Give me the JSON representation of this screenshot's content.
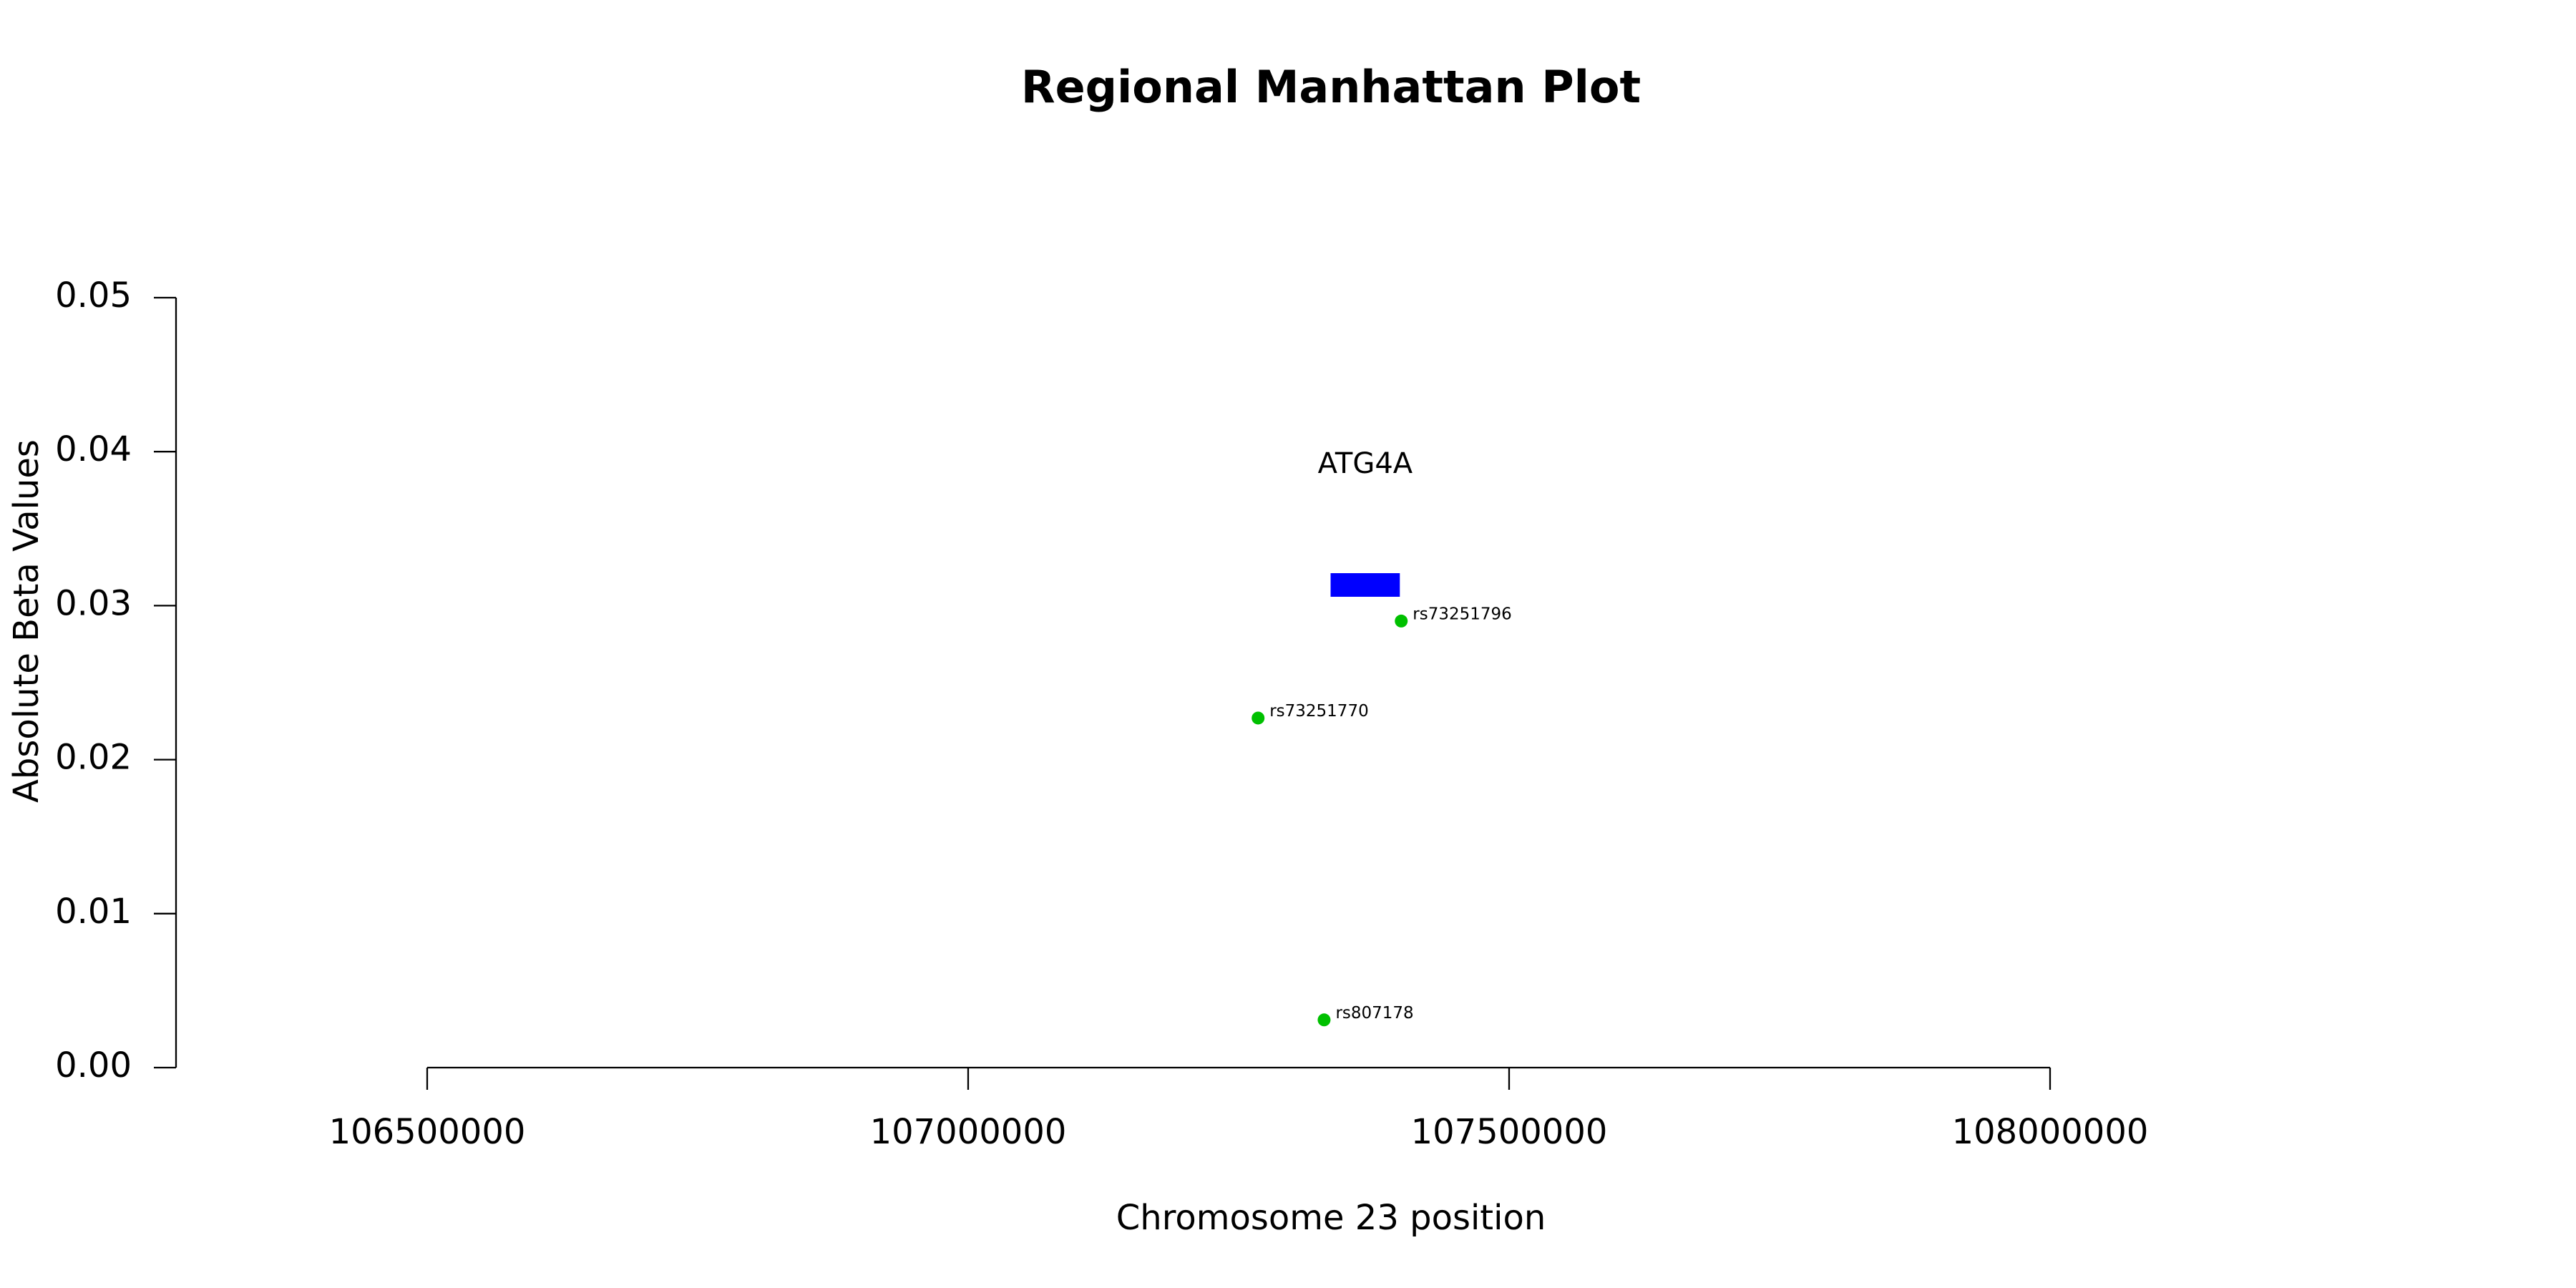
{
  "chart_data": {
    "type": "scatter",
    "title": "Regional Manhattan Plot",
    "xlabel": "Chromosome 23 position",
    "ylabel": "Absolute Beta Values",
    "x": [
      107268000,
      107400300,
      107329000
    ],
    "values": [
      0.0227,
      0.029,
      0.0031
    ],
    "point_labels": [
      "rs73251770",
      "rs73251796",
      "rs807178"
    ],
    "color": "#00c000",
    "genes": [
      {
        "name": "ATG4A",
        "start": 107335000,
        "end": 107399000,
        "color": "#0000ff"
      }
    ],
    "xlim": [
      106500000,
      108000000
    ],
    "xticks": [
      106500000,
      107000000,
      107500000,
      108000000
    ],
    "ylim": [
      0,
      0.05
    ],
    "yticks": [
      {
        "value": 0,
        "label": "0.00"
      },
      {
        "value": 0.01,
        "label": "0.01"
      },
      {
        "value": 0.02,
        "label": "0.02"
      },
      {
        "value": 0.03,
        "label": "0.03"
      },
      {
        "value": 0.04,
        "label": "0.04"
      },
      {
        "value": 0.05,
        "label": "0.05"
      }
    ]
  }
}
